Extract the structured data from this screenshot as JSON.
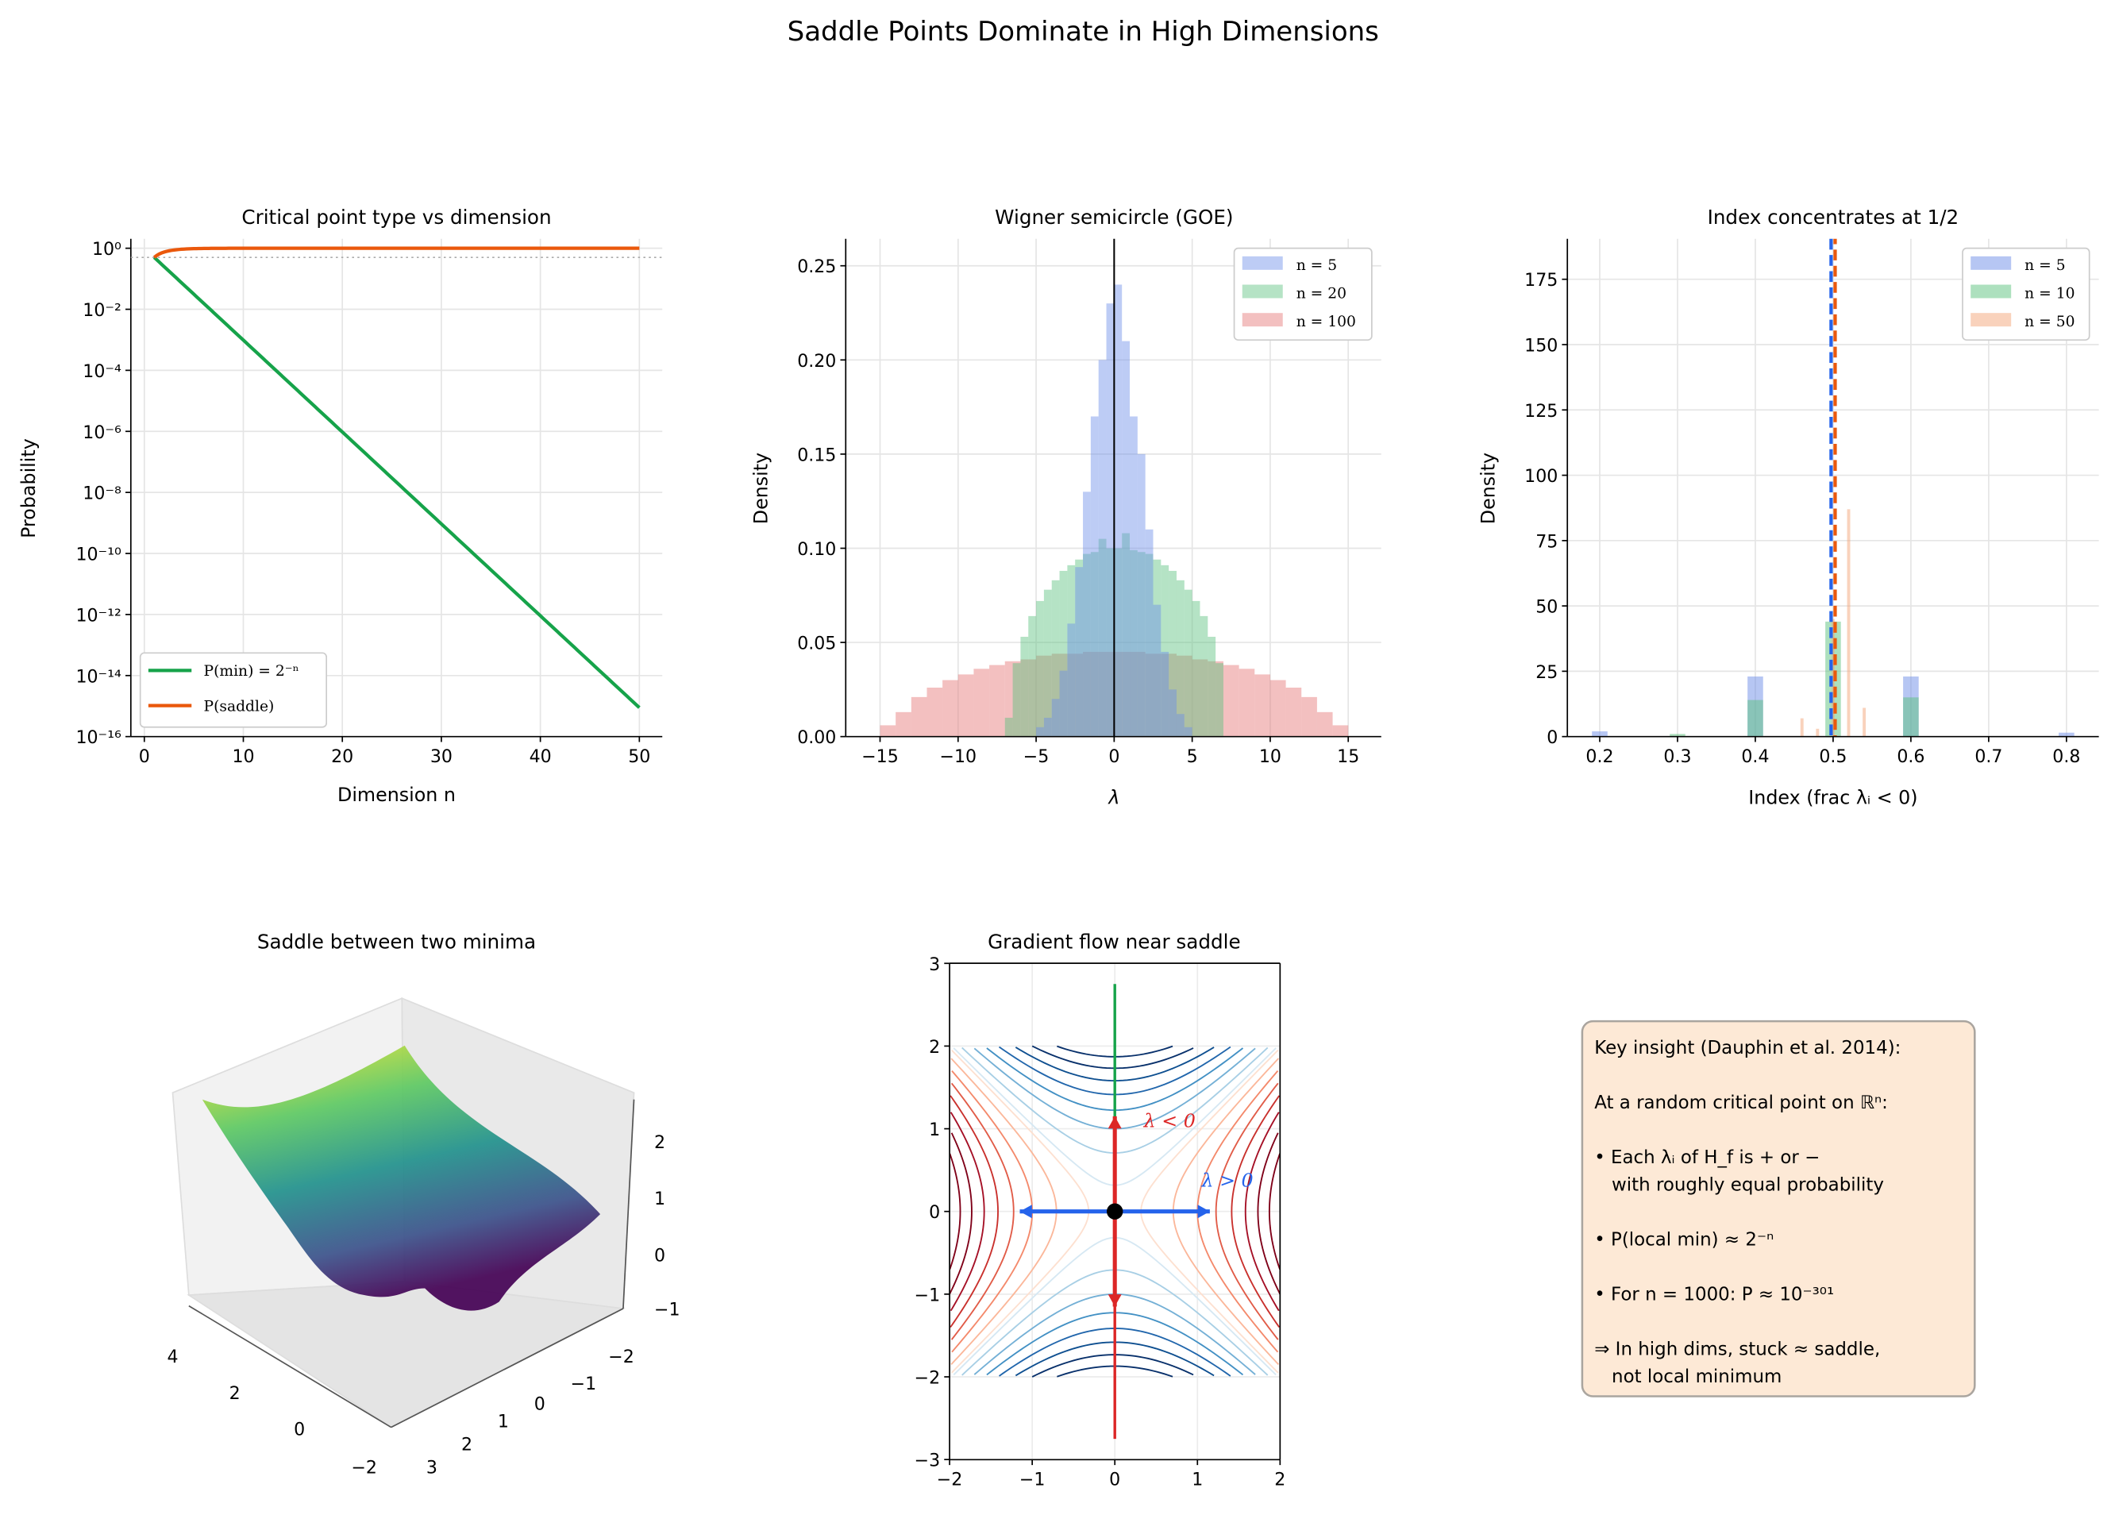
{
  "suptitle": "Saddle Points Dominate in High Dimensions",
  "chart_data": [
    {
      "type": "line",
      "title": "Critical point type vs dimension",
      "xlabel": "Dimension n",
      "ylabel": "Probability",
      "yscale": "log",
      "xlim": [
        -2.5,
        52.5
      ],
      "ylim": [
        1e-16,
        2
      ],
      "xticks": [
        "0",
        "10",
        "20",
        "30",
        "40",
        "50"
      ],
      "yticks": [
        "10⁰",
        "10⁻²",
        "10⁻⁴",
        "10⁻⁶",
        "10⁻⁸",
        "10⁻¹⁰",
        "10⁻¹²",
        "10⁻¹⁴",
        "10⁻¹⁶"
      ],
      "grid": true,
      "legend_position": "lower-left",
      "n_range": [
        1,
        50
      ],
      "reference_line": 0.5,
      "series": [
        {
          "name": "P(min) = 2⁻ⁿ",
          "formula": "2^-n",
          "color": "#16a34a"
        },
        {
          "name": "P(saddle)",
          "formula": "1 - 2^-n",
          "color": "#ea580c"
        }
      ]
    },
    {
      "type": "histogram",
      "title": "Wigner semicircle (GOE)",
      "xlabel": "λ",
      "ylabel": "Density",
      "xlim": [
        -17.2,
        17.2
      ],
      "ylim": [
        0,
        0.265
      ],
      "xticks": [
        "−15",
        "−10",
        "−5",
        "0",
        "5",
        "10",
        "15"
      ],
      "yticks": [
        "0.00",
        "0.05",
        "0.10",
        "0.15",
        "0.20",
        "0.25"
      ],
      "grid": true,
      "legend_position": "top-right",
      "vline": 0,
      "series": [
        {
          "name": "n = 5",
          "color": "#6d8ee8",
          "bin_start": -5,
          "bin_width": 0.5,
          "values": [
            0.005,
            0.01,
            0.02,
            0.035,
            0.06,
            0.09,
            0.13,
            0.17,
            0.2,
            0.23,
            0.24,
            0.21,
            0.17,
            0.15,
            0.11,
            0.07,
            0.045,
            0.025,
            0.012,
            0.005
          ]
        },
        {
          "name": "n = 20",
          "color": "#5cc27e",
          "bin_start": -7,
          "bin_width": 0.5,
          "values": [
            0.01,
            0.039,
            0.053,
            0.064,
            0.072,
            0.078,
            0.083,
            0.088,
            0.091,
            0.094,
            0.097,
            0.098,
            0.105,
            0.1,
            0.1,
            0.108,
            0.099,
            0.098,
            0.097,
            0.094,
            0.091,
            0.088,
            0.083,
            0.078,
            0.072,
            0.064,
            0.053,
            0.039
          ]
        },
        {
          "name": "n = 100",
          "color": "#e57373",
          "bin_start": -15,
          "bin_width": 1,
          "values": [
            0.006,
            0.013,
            0.021,
            0.026,
            0.03,
            0.033,
            0.036,
            0.038,
            0.04,
            0.041,
            0.043,
            0.044,
            0.044,
            0.045,
            0.045,
            0.045,
            0.045,
            0.044,
            0.044,
            0.043,
            0.041,
            0.04,
            0.038,
            0.036,
            0.033,
            0.03,
            0.026,
            0.021,
            0.013,
            0.006
          ]
        }
      ]
    },
    {
      "type": "histogram",
      "title": "Index concentrates at 1/2",
      "xlabel": "Index (frac λᵢ < 0)",
      "ylabel": "Density",
      "xlim": [
        0.158,
        0.842
      ],
      "ylim": [
        0,
        190
      ],
      "xticks": [
        "0.2",
        "0.3",
        "0.4",
        "0.5",
        "0.6",
        "0.7",
        "0.8"
      ],
      "yticks": [
        "0",
        "25",
        "50",
        "75",
        "100",
        "125",
        "150",
        "175"
      ],
      "grid": true,
      "legend_position": "top-right",
      "vlines": [
        {
          "x": 0.5,
          "color": "#2563eb"
        },
        {
          "x": 0.5,
          "color": "#ea580c"
        }
      ],
      "series": [
        {
          "name": "n = 5",
          "color": "#6d8ee8",
          "bar_width": 0.02,
          "x": [
            0.2,
            0.4,
            0.6,
            0.8
          ],
          "values": [
            2,
            23,
            23,
            1.5
          ]
        },
        {
          "name": "n = 10",
          "color": "#5cc27e",
          "bar_width": 0.02,
          "x": [
            0.3,
            0.4,
            0.5,
            0.6
          ],
          "values": [
            1,
            14,
            44,
            15
          ]
        },
        {
          "name": "n = 50",
          "color": "#f4a57a",
          "bar_width": 0.004,
          "x": [
            0.46,
            0.48,
            0.5,
            0.52,
            0.54
          ],
          "values": [
            7,
            3,
            45,
            87,
            11
          ]
        }
      ]
    },
    {
      "type": "surface3d",
      "title": "Saddle between two minima",
      "colormap": "viridis",
      "zticks": [
        "2",
        "1",
        "0",
        "−1"
      ],
      "xticks": [
        "−2",
        "−1",
        "0",
        "1",
        "2",
        "3"
      ],
      "yticks": [
        "4",
        "2",
        "0",
        "−2"
      ]
    },
    {
      "type": "contour",
      "title": "Gradient flow near saddle",
      "function": "x² − y²",
      "xlim": [
        -2,
        2
      ],
      "ylim": [
        -3,
        3
      ],
      "xticks": [
        "−2",
        "−1",
        "0",
        "1",
        "2"
      ],
      "yticks": [
        "3",
        "2",
        "1",
        "0",
        "−1",
        "−2",
        "−3"
      ],
      "levels": [
        -3.5,
        -3,
        -2.5,
        -2,
        -1.5,
        -1,
        -0.5,
        -0.1,
        0.1,
        0.5,
        1,
        1.5,
        2,
        2.5,
        3,
        3.5
      ],
      "colormap": "RdBu",
      "annotations": [
        {
          "text": "λ < 0",
          "color": "#dc2626",
          "x": 0.35,
          "y": 1.1
        },
        {
          "text": "λ > 0",
          "color": "#2563eb",
          "x": 1.05,
          "y": 0.38
        }
      ],
      "flows": [
        {
          "from": [
            0,
            0
          ],
          "to": [
            0,
            2.75
          ],
          "color": "#16a34a"
        },
        {
          "from": [
            0,
            0
          ],
          "to": [
            0,
            -2.75
          ],
          "color": "#dc2626"
        }
      ],
      "arrows": [
        {
          "from": [
            0,
            0
          ],
          "to": [
            0,
            1.15
          ],
          "color": "#dc2626"
        },
        {
          "from": [
            0,
            0
          ],
          "to": [
            0,
            -1.15
          ],
          "color": "#dc2626"
        },
        {
          "from": [
            0,
            0
          ],
          "to": [
            1.15,
            0
          ],
          "color": "#2563eb"
        },
        {
          "from": [
            0,
            0
          ],
          "to": [
            -1.15,
            0
          ],
          "color": "#2563eb"
        }
      ],
      "saddle_point": [
        0,
        0
      ]
    }
  ],
  "insight_box": {
    "background": "#fde9d6",
    "lines": [
      "Key insight (Dauphin et al. 2014):",
      "",
      "At a random critical point on ℝⁿ:",
      "",
      "• Each λᵢ of H_f is + or −",
      "   with roughly equal probability",
      "",
      "• P(local min) ≈ 2⁻ⁿ",
      "",
      "• For n = 1000: P ≈ 10⁻³⁰¹",
      "",
      "⇒ In high dims, stuck ≈ saddle,",
      "   not local minimum"
    ]
  }
}
